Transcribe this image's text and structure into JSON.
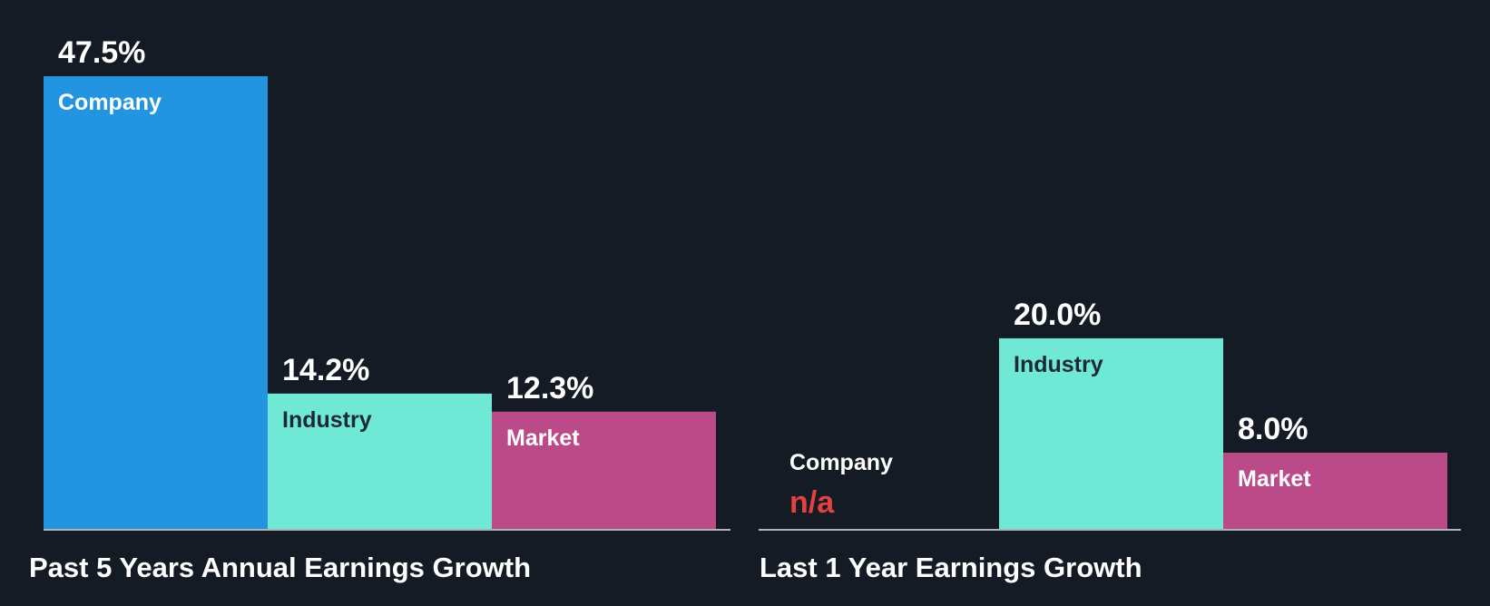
{
  "chart_data": [
    {
      "type": "bar",
      "title": "Past 5 Years Annual Earnings Growth",
      "unit": "%",
      "ylim": [
        0,
        47.5
      ],
      "grid": false,
      "categories": [
        "Company",
        "Industry",
        "Market"
      ],
      "values": [
        47.5,
        14.2,
        12.3
      ],
      "value_labels": [
        "47.5%",
        "14.2%",
        "12.3%"
      ]
    },
    {
      "type": "bar",
      "title": "Last 1 Year Earnings Growth",
      "unit": "%",
      "ylim": [
        0,
        47.5
      ],
      "grid": false,
      "categories": [
        "Company",
        "Industry",
        "Market"
      ],
      "values": [
        null,
        20.0,
        8.0
      ],
      "value_labels": [
        "n/a",
        "20.0%",
        "8.0%"
      ]
    }
  ],
  "colors": {
    "background": "#151b24",
    "company": "#2394e0",
    "industry": "#6fe8d6",
    "market": "#bb4a88",
    "na_text": "#e64141",
    "baseline": "#aeb3ba"
  }
}
